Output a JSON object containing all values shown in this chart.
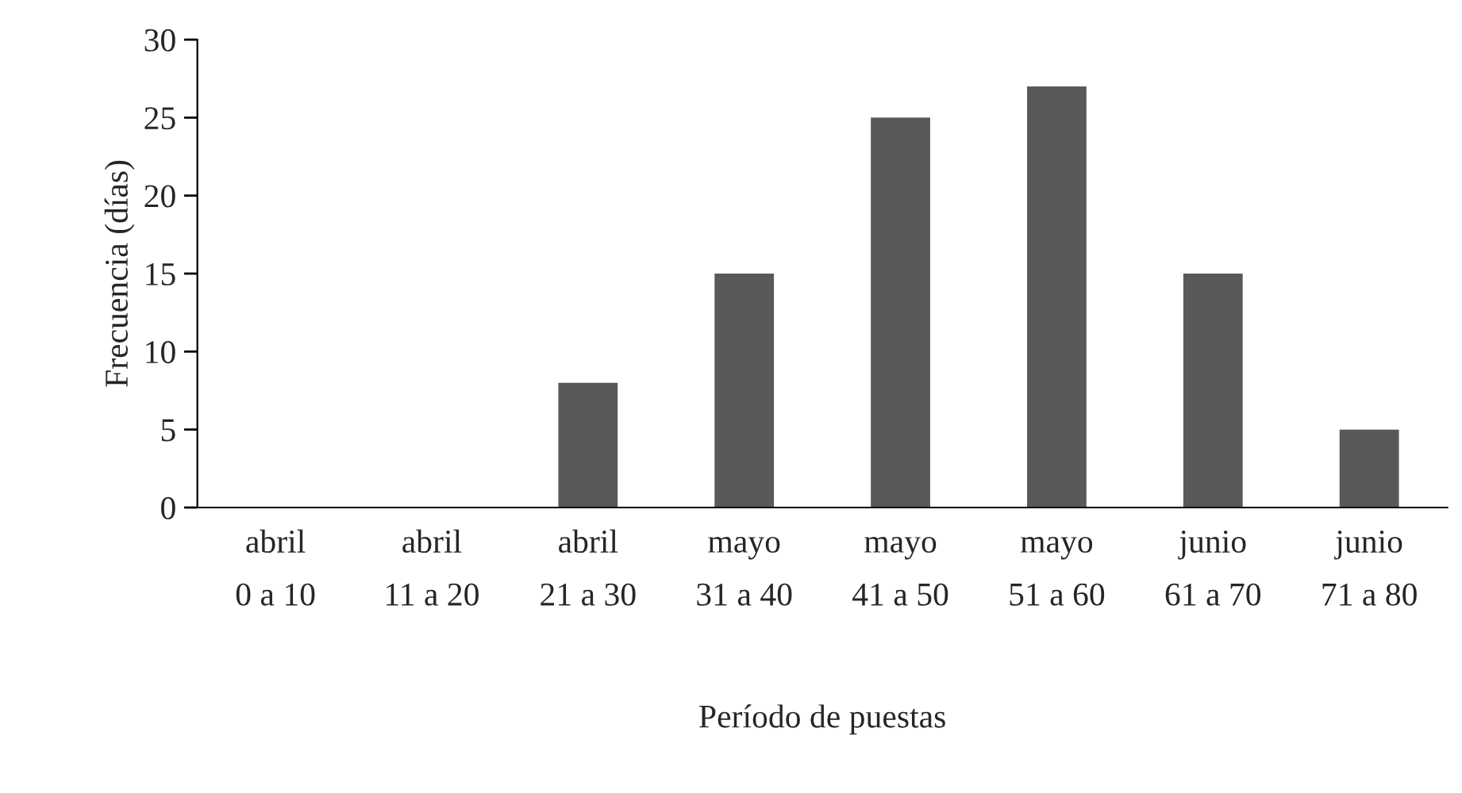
{
  "chart_data": {
    "type": "bar",
    "categories": [
      "abril\n0 a 10",
      "abril\n11 a 20",
      "abril\n21 a 30",
      "mayo\n31 a 40",
      "mayo\n41 a 50",
      "mayo\n51 a 60",
      "junio\n61 a 70",
      "junio\n71 a 80"
    ],
    "values": [
      0,
      0,
      8,
      15,
      25,
      27,
      15,
      5
    ],
    "color": "#595959",
    "xlabel": "Período de puestas",
    "ylabel": "Frecuencia (días)",
    "ylim": [
      0,
      30
    ],
    "yticks": [
      0,
      5,
      10,
      15,
      20,
      25,
      30
    ],
    "grid": false,
    "legend": false
  }
}
